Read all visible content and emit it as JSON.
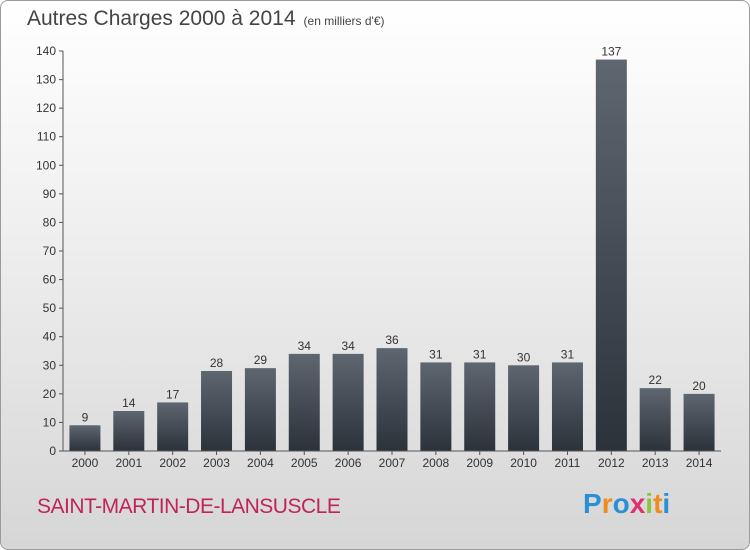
{
  "title": "Autres Charges 2000 à 2014",
  "unit": "(en milliers d'€)",
  "commune": "SAINT-MARTIN-DE-LANSUSCLE",
  "logo": {
    "text": "Proxiti",
    "letter_colors": [
      "#2b8fd6",
      "#f08c1e",
      "#2b8fd6",
      "#e0306e",
      "#8bc53f",
      "#f08c1e",
      "#2b8fd6"
    ]
  },
  "chart_data": {
    "type": "bar",
    "categories": [
      "2000",
      "2001",
      "2002",
      "2003",
      "2004",
      "2005",
      "2006",
      "2007",
      "2008",
      "2009",
      "2010",
      "2011",
      "2012",
      "2013",
      "2014"
    ],
    "values": [
      9,
      14,
      17,
      28,
      29,
      34,
      34,
      36,
      31,
      31,
      30,
      31,
      137,
      22,
      20
    ],
    "ylim": [
      0,
      140
    ],
    "yticks": [
      0,
      10,
      20,
      30,
      40,
      50,
      60,
      70,
      80,
      90,
      100,
      110,
      120,
      130,
      140
    ],
    "grid": false,
    "bar_color_top": "#5e6670",
    "bar_color_bottom": "#2c323a"
  }
}
